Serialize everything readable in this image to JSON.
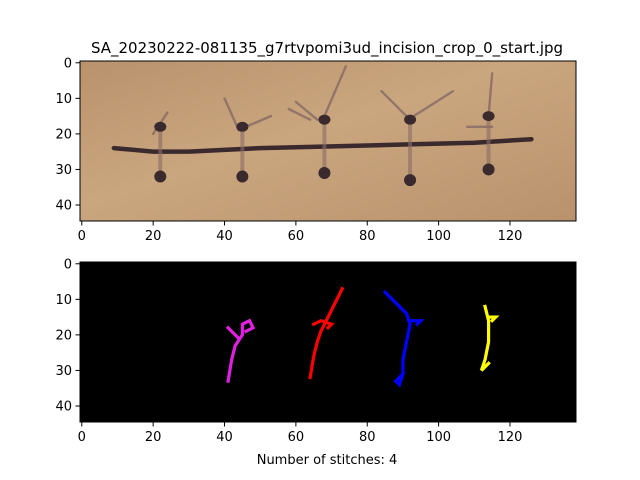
{
  "figure": {
    "title": "SA_20230222-081135_g7rtvpomi3ud_incision_crop_0_start.jpg",
    "xlabel": "Number of stitches: 4"
  },
  "chart_data": [
    {
      "type": "image",
      "name": "top-photo",
      "xlim": [
        -0.5,
        138.5
      ],
      "ylim": [
        44.5,
        -0.5
      ],
      "xticks": [
        0,
        20,
        40,
        60,
        80,
        100,
        120
      ],
      "yticks": [
        0,
        10,
        20,
        30,
        40
      ],
      "colors": {
        "skin": "#caa67f",
        "skin_dark": "#b8926c",
        "suture": "#3a2a2e",
        "thread": "#8a6d66"
      },
      "incision": [
        [
          9,
          24
        ],
        [
          20,
          25
        ],
        [
          30,
          25
        ],
        [
          50,
          24
        ],
        [
          70,
          23.5
        ],
        [
          90,
          23
        ],
        [
          110,
          22.5
        ],
        [
          126,
          21.5
        ]
      ],
      "stitches": [
        {
          "x": 22,
          "top": 18,
          "bottom": 32
        },
        {
          "x": 45,
          "top": 18,
          "bottom": 32
        },
        {
          "x": 68,
          "top": 16,
          "bottom": 31
        },
        {
          "x": 92,
          "top": 16,
          "bottom": 33
        },
        {
          "x": 114,
          "top": 15,
          "bottom": 30
        }
      ],
      "thread_tails": [
        [
          [
            20,
            20
          ],
          [
            24,
            14
          ]
        ],
        [
          [
            44,
            19
          ],
          [
            40,
            10
          ]
        ],
        [
          [
            46,
            18
          ],
          [
            53,
            15
          ]
        ],
        [
          [
            64,
            16
          ],
          [
            58,
            13
          ]
        ],
        [
          [
            68,
            15
          ],
          [
            74,
            1
          ]
        ],
        [
          [
            66,
            16
          ],
          [
            60,
            11
          ]
        ],
        [
          [
            92,
            16
          ],
          [
            84,
            8
          ]
        ],
        [
          [
            93,
            15
          ],
          [
            104,
            8
          ]
        ],
        [
          [
            114,
            15
          ],
          [
            115,
            3
          ]
        ],
        [
          [
            115,
            18
          ],
          [
            108,
            18
          ]
        ]
      ]
    },
    {
      "type": "image",
      "name": "stitch-mask",
      "xlim": [
        -0.5,
        138.5
      ],
      "ylim": [
        44.5,
        -0.5
      ],
      "xticks": [
        0,
        20,
        40,
        60,
        80,
        100,
        120
      ],
      "yticks": [
        0,
        10,
        20,
        30,
        40
      ],
      "background": "#000000",
      "series": [
        {
          "color": "#e020e0",
          "paths": [
            [
              [
                41,
                33
              ],
              [
                42,
                27
              ],
              [
                43,
                23
              ],
              [
                45,
                20
              ],
              [
                45,
                17
              ],
              [
                47,
                16
              ],
              [
                48,
                18
              ],
              [
                46,
                19
              ]
            ],
            [
              [
                41,
                18
              ],
              [
                43,
                20
              ],
              [
                44,
                21
              ]
            ]
          ]
        },
        {
          "color": "#ff0000",
          "paths": [
            [
              [
                64,
                32
              ],
              [
                65,
                26
              ],
              [
                66,
                22
              ],
              [
                67,
                19
              ],
              [
                69,
                15
              ],
              [
                71,
                11
              ],
              [
                73,
                7
              ]
            ],
            [
              [
                65,
                17
              ],
              [
                67,
                16
              ],
              [
                70,
                17
              ],
              [
                69,
                18
              ]
            ]
          ]
        },
        {
          "color": "#0000ff",
          "paths": [
            [
              [
                85,
                8
              ],
              [
                88,
                11
              ],
              [
                91,
                14
              ],
              [
                92,
                17
              ],
              [
                91,
                22
              ],
              [
                90,
                27
              ],
              [
                90,
                31
              ],
              [
                89,
                34
              ],
              [
                88,
                33
              ],
              [
                90,
                31
              ]
            ],
            [
              [
                92,
                16
              ],
              [
                95,
                16
              ],
              [
                94,
                17
              ]
            ]
          ]
        },
        {
          "color": "#ffff00",
          "paths": [
            [
              [
                113,
                12
              ],
              [
                114,
                16
              ],
              [
                114,
                22
              ],
              [
                113,
                27
              ],
              [
                112,
                30
              ],
              [
                113,
                29
              ],
              [
                114,
                28
              ]
            ],
            [
              [
                114,
                15
              ],
              [
                116,
                15
              ],
              [
                115,
                16
              ]
            ]
          ]
        }
      ]
    }
  ]
}
